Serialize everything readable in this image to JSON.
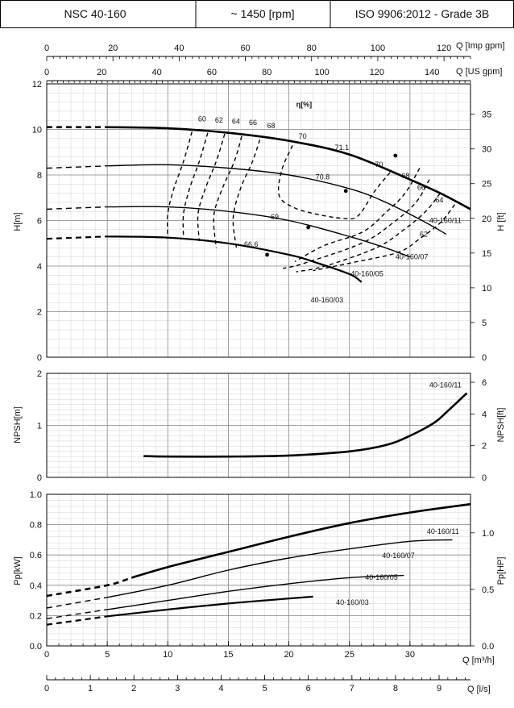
{
  "header": {
    "model": "NSC 40-160",
    "speed": "~ 1450 [rpm]",
    "standard": "ISO 9906:2012 - Grade 3B"
  },
  "chart_data": {
    "type": "line",
    "x_axes": {
      "imp_gpm": {
        "label": "Q [Imp gpm]",
        "range": [
          0,
          128
        ],
        "ticks": [
          0,
          20,
          40,
          60,
          80,
          100,
          120
        ]
      },
      "us_gpm": {
        "label": "Q [US gpm]",
        "range": [
          0,
          154
        ],
        "ticks": [
          0,
          20,
          40,
          60,
          80,
          100,
          120,
          140
        ]
      },
      "m3h": {
        "label": "Q [m³/h]",
        "range": [
          0,
          35
        ],
        "ticks": [
          0,
          5,
          10,
          15,
          20,
          25,
          30
        ]
      },
      "ls": {
        "label": "Q [l/s]",
        "range": [
          0,
          9.72
        ],
        "ticks": [
          0,
          1,
          2,
          3,
          4,
          5,
          6,
          7,
          8,
          9
        ]
      }
    },
    "panels": [
      {
        "name": "head",
        "ylabel_left": "H[m]",
        "ylabel_right": "H [ft]",
        "ylim": [
          0,
          12
        ],
        "yticks": [
          0,
          2,
          4,
          6,
          8,
          10,
          12
        ],
        "right_ticks": [
          0,
          5,
          10,
          15,
          20,
          25,
          30,
          35
        ],
        "efficiency_title": "η[%]",
        "series": [
          {
            "name": "40-160/11",
            "dashed_until": 5,
            "points": [
              [
                0,
                10.1
              ],
              [
                5,
                10.1
              ],
              [
                10,
                10.05
              ],
              [
                15,
                9.85
              ],
              [
                20,
                9.5
              ],
              [
                25,
                8.9
              ],
              [
                30,
                7.8
              ],
              [
                32.5,
                7.2
              ],
              [
                35,
                6.5
              ]
            ]
          },
          {
            "name": "40-160/07",
            "dashed_until": 5,
            "points": [
              [
                0,
                8.3
              ],
              [
                5,
                8.4
              ],
              [
                10,
                8.45
              ],
              [
                15,
                8.3
              ],
              [
                20,
                8.0
              ],
              [
                25,
                7.4
              ],
              [
                28,
                6.8
              ],
              [
                31,
                6.0
              ],
              [
                33,
                5.4
              ]
            ]
          },
          {
            "name": "40-160/05",
            "dashed_until": 5,
            "points": [
              [
                0,
                6.5
              ],
              [
                5,
                6.6
              ],
              [
                10,
                6.6
              ],
              [
                15,
                6.4
              ],
              [
                20,
                6.0
              ],
              [
                25,
                5.3
              ],
              [
                28,
                4.8
              ],
              [
                30,
                4.4
              ]
            ]
          },
          {
            "name": "40-160/03",
            "dashed_until": 5,
            "points": [
              [
                0,
                5.2
              ],
              [
                5,
                5.3
              ],
              [
                10,
                5.25
              ],
              [
                15,
                5.0
              ],
              [
                20,
                4.5
              ],
              [
                22,
                4.2
              ],
              [
                25,
                3.65
              ],
              [
                26,
                3.3
              ]
            ]
          }
        ],
        "efficiency_labels": [
          "60",
          "62",
          "64",
          "66",
          "68",
          "70",
          "71.1",
          "70.8",
          "69",
          "66.6",
          "70",
          "68",
          "66",
          "64",
          "62"
        ],
        "bep_markers": [
          [
            28.8,
            8.85
          ],
          [
            24.7,
            7.3
          ],
          [
            21.6,
            5.7
          ],
          [
            18.2,
            4.5
          ]
        ]
      },
      {
        "name": "npsh",
        "ylabel_left": "NPSH[m]",
        "ylabel_right": "NPSH[ft]",
        "ylim": [
          0,
          2
        ],
        "yticks": [
          0,
          1,
          2
        ],
        "right_ticks": [
          0,
          2,
          4,
          6
        ],
        "series": [
          {
            "name": "40-160/11",
            "points": [
              [
                8,
                0.41
              ],
              [
                10,
                0.4
              ],
              [
                15,
                0.4
              ],
              [
                20,
                0.42
              ],
              [
                25,
                0.5
              ],
              [
                28,
                0.62
              ],
              [
                30,
                0.8
              ],
              [
                32,
                1.05
              ],
              [
                33,
                1.25
              ],
              [
                34.7,
                1.62
              ]
            ]
          }
        ]
      },
      {
        "name": "power",
        "ylabel_left": "Pp[kW]",
        "ylabel_right": "Pp[HP]",
        "ylim": [
          0,
          1.0
        ],
        "yticks": [
          0.0,
          0.2,
          0.4,
          0.6,
          0.8,
          1.0
        ],
        "right_ticks": [
          0.0,
          0.5,
          1.0
        ],
        "series": [
          {
            "name": "40-160/11",
            "dashed_until": 7,
            "points": [
              [
                0,
                0.33
              ],
              [
                5,
                0.4
              ],
              [
                7,
                0.45
              ],
              [
                10,
                0.52
              ],
              [
                15,
                0.62
              ],
              [
                20,
                0.72
              ],
              [
                25,
                0.81
              ],
              [
                30,
                0.88
              ],
              [
                35,
                0.935
              ]
            ]
          },
          {
            "name": "40-160/07",
            "dashed_until": 5,
            "points": [
              [
                0,
                0.25
              ],
              [
                5,
                0.32
              ],
              [
                10,
                0.4
              ],
              [
                15,
                0.5
              ],
              [
                20,
                0.58
              ],
              [
                25,
                0.64
              ],
              [
                30,
                0.69
              ],
              [
                33.5,
                0.7
              ]
            ]
          },
          {
            "name": "40-160/05",
            "dashed_until": 5,
            "points": [
              [
                0,
                0.18
              ],
              [
                5,
                0.24
              ],
              [
                10,
                0.3
              ],
              [
                15,
                0.36
              ],
              [
                20,
                0.41
              ],
              [
                25,
                0.45
              ],
              [
                29.5,
                0.465
              ]
            ]
          },
          {
            "name": "40-160/03",
            "dashed_until": 5,
            "points": [
              [
                0,
                0.14
              ],
              [
                5,
                0.195
              ],
              [
                10,
                0.24
              ],
              [
                15,
                0.28
              ],
              [
                18,
                0.3
              ],
              [
                22,
                0.325
              ]
            ]
          }
        ]
      }
    ]
  }
}
